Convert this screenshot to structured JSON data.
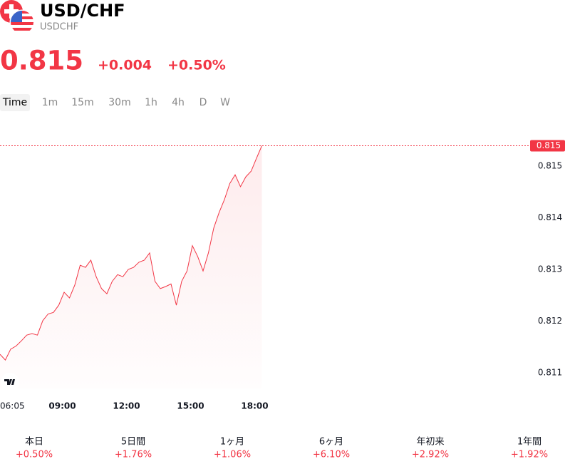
{
  "header": {
    "title": "USD/CHF",
    "symbol": "USDCHF",
    "price": "0.815",
    "change": "+0.004",
    "change_percent": "+0.50%"
  },
  "tabs": [
    "Time",
    "1m",
    "15m",
    "30m",
    "1h",
    "4h",
    "D",
    "W"
  ],
  "chart_data": {
    "type": "line",
    "color": "#f23645",
    "x": [
      "06:05",
      "06:20",
      "06:35",
      "06:50",
      "07:05",
      "07:20",
      "07:35",
      "07:50",
      "08:05",
      "08:20",
      "08:35",
      "08:50",
      "09:05",
      "09:20",
      "09:35",
      "09:50",
      "10:05",
      "10:20",
      "10:35",
      "10:50",
      "11:05",
      "11:20",
      "11:35",
      "11:50",
      "12:05",
      "12:20",
      "12:35",
      "12:50",
      "13:05",
      "13:20",
      "13:35",
      "13:50",
      "14:05",
      "14:20",
      "14:35",
      "14:50",
      "15:05",
      "15:20",
      "15:35",
      "15:50",
      "16:05",
      "16:20",
      "16:35",
      "16:50",
      "17:05",
      "17:20",
      "17:35",
      "17:50",
      "18:05",
      "18:20"
    ],
    "values": [
      0.81136,
      0.81125,
      0.81146,
      0.81152,
      0.81162,
      0.81173,
      0.81176,
      0.81173,
      0.81201,
      0.81214,
      0.81217,
      0.81231,
      0.81256,
      0.81245,
      0.8127,
      0.81308,
      0.81304,
      0.81318,
      0.81286,
      0.81263,
      0.81253,
      0.81277,
      0.8129,
      0.81286,
      0.813,
      0.81304,
      0.81314,
      0.81318,
      0.81332,
      0.81277,
      0.81263,
      0.81267,
      0.81272,
      0.81231,
      0.81277,
      0.81297,
      0.81346,
      0.81325,
      0.81297,
      0.81332,
      0.8138,
      0.8141,
      0.81435,
      0.81466,
      0.81483,
      0.8146,
      0.81479,
      0.8149,
      0.81515,
      0.81539
    ],
    "value_labels": [
      null,
      null,
      null,
      null,
      null,
      null,
      null,
      null,
      null,
      null,
      null,
      null,
      null,
      null,
      null,
      null,
      null,
      null,
      null,
      null,
      null,
      null,
      null,
      null,
      null,
      null,
      null,
      null,
      null,
      null,
      null,
      null,
      null,
      null,
      null,
      null,
      null,
      null,
      null,
      null,
      null,
      null,
      null,
      null,
      null,
      null,
      null,
      null,
      null,
      "0.815"
    ],
    "xlim": [
      "06:05",
      "18:25"
    ],
    "xticks": [
      "06:05",
      "09:00",
      "12:00",
      "15:00",
      "18:00"
    ],
    "ylim": [
      0.8107,
      0.81559
    ],
    "yticks": [
      0.811,
      0.812,
      0.813,
      0.814,
      0.815
    ]
  },
  "performance": [
    {
      "label": "本日",
      "value": "+0.50%"
    },
    {
      "label": "5日間",
      "value": "+1.76%"
    },
    {
      "label": "1ヶ月",
      "value": "+1.06%"
    },
    {
      "label": "6ヶ月",
      "value": "+6.10%"
    },
    {
      "label": "年初来",
      "value": "+2.92%"
    },
    {
      "label": "1年間",
      "value": "+1.92%"
    }
  ]
}
